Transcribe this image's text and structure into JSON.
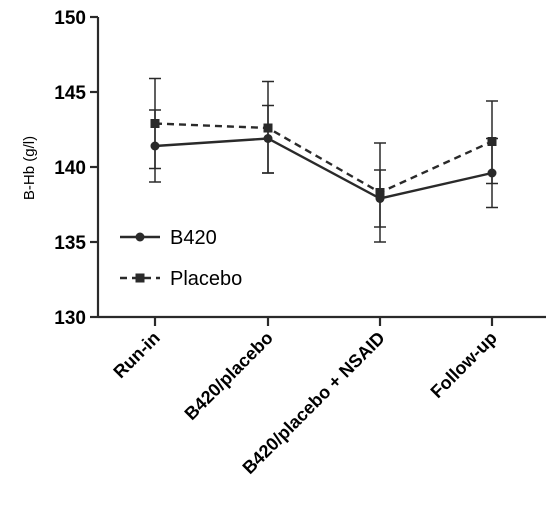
{
  "chart_data": {
    "type": "line",
    "title": "",
    "xlabel": "",
    "ylabel": "B-Hb (g/l)",
    "ylim": [
      130,
      150
    ],
    "yticks": [
      130,
      135,
      140,
      145,
      150
    ],
    "categories": [
      "Run-in",
      "B420/placebo",
      "B420/placebo + NSAID",
      "Follow-up"
    ],
    "legend_position": "lower-left",
    "grid": false,
    "series": [
      {
        "name": "B420",
        "values": [
          141.4,
          141.9,
          137.9,
          139.6
        ],
        "err_low": [
          139.0,
          139.6,
          136.0,
          137.3
        ],
        "err_high": [
          143.8,
          144.1,
          139.8,
          141.9
        ],
        "line_style": "solid",
        "marker": "circle",
        "color": "#2a2a2a"
      },
      {
        "name": "Placebo",
        "values": [
          142.9,
          142.6,
          138.3,
          141.7
        ],
        "err_low": [
          139.9,
          139.6,
          135.0,
          138.9
        ],
        "err_high": [
          145.9,
          145.7,
          141.6,
          144.4
        ],
        "line_style": "dashed",
        "marker": "square",
        "color": "#2a2a2a"
      }
    ]
  }
}
